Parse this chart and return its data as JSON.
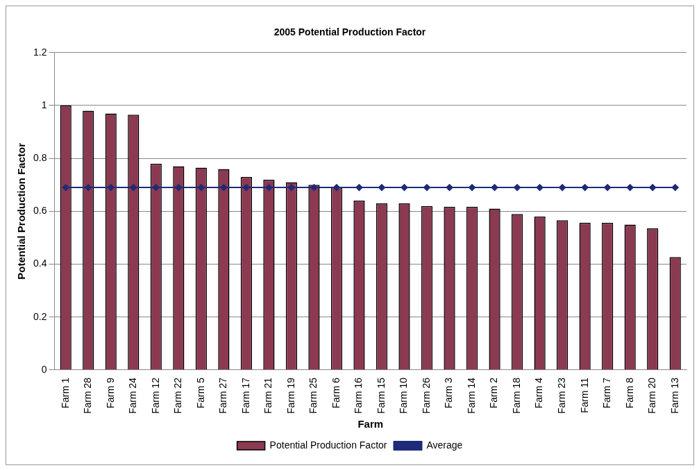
{
  "chart_data": {
    "type": "bar",
    "title": "2005 Potential Production Factor",
    "xlabel": "Farm",
    "ylabel": "Potential Production Factor",
    "categories": [
      "Farm 1",
      "Farm 28",
      "Farm 9",
      "Farm 24",
      "Farm 12",
      "Farm 22",
      "Farm 5",
      "Farm 27",
      "Farm 17",
      "Farm 21",
      "Farm 19",
      "Farm 25",
      "Farm 6",
      "Farm 16",
      "Farm 15",
      "Farm 10",
      "Farm 26",
      "Farm 3",
      "Farm 14",
      "Farm 2",
      "Farm 18",
      "Farm 4",
      "Farm 23",
      "Farm 11",
      "Farm 7",
      "Farm 8",
      "Farm 20",
      "Farm 13"
    ],
    "series": [
      {
        "name": "Potential Production Factor",
        "color": "#8b3a52",
        "values": [
          1.0,
          0.98,
          0.97,
          0.965,
          0.78,
          0.77,
          0.765,
          0.76,
          0.73,
          0.72,
          0.71,
          0.7,
          0.69,
          0.64,
          0.63,
          0.63,
          0.62,
          0.617,
          0.617,
          0.61,
          0.59,
          0.58,
          0.566,
          0.557,
          0.556,
          0.55,
          0.535,
          0.427
        ]
      },
      {
        "name": "Average",
        "type": "line",
        "color": "#1f2a78",
        "values": [
          0.69,
          0.69,
          0.69,
          0.69,
          0.69,
          0.69,
          0.69,
          0.69,
          0.69,
          0.69,
          0.69,
          0.69,
          0.69,
          0.69,
          0.69,
          0.69,
          0.69,
          0.69,
          0.69,
          0.69,
          0.69,
          0.69,
          0.69,
          0.69,
          0.69,
          0.69,
          0.69,
          0.69
        ]
      }
    ],
    "ylim": [
      0,
      1.2
    ],
    "yticks": [
      0,
      0.2,
      0.4,
      0.6,
      0.8,
      1,
      1.2
    ],
    "grid": "y",
    "legend": "bottom",
    "marker": "diamond",
    "line_style": "solid"
  }
}
